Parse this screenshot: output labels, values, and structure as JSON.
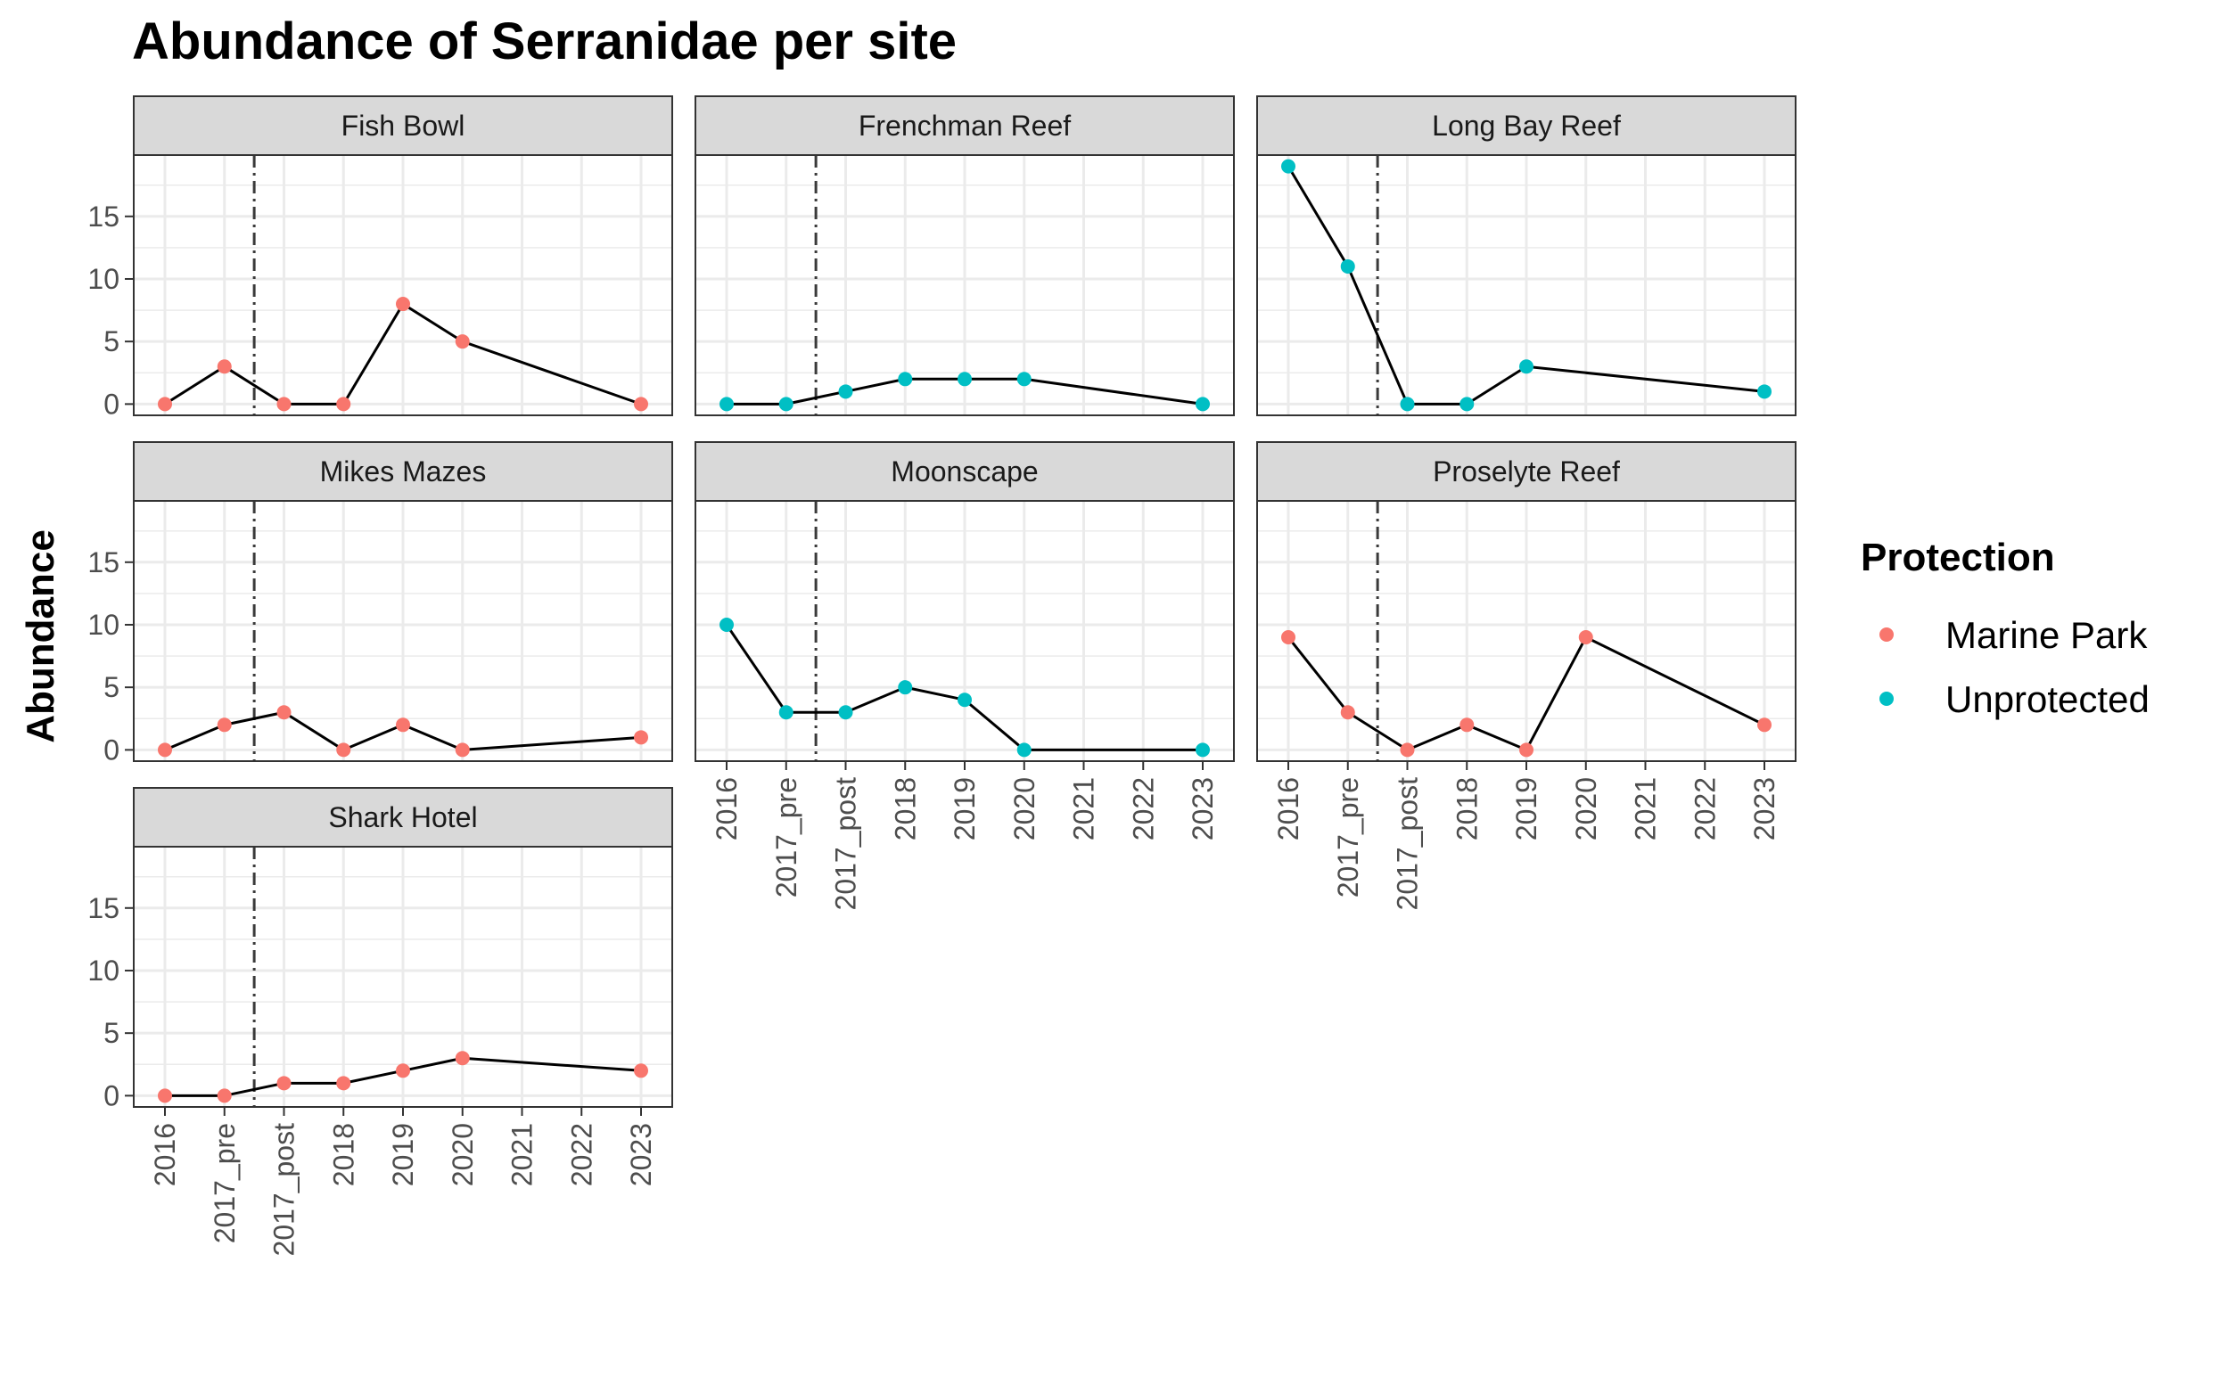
{
  "chart_data": {
    "type": "line",
    "title": "Abundance of Serranidae per site",
    "ylabel": "Abundance",
    "xlabel": "",
    "categories": [
      "2016",
      "2017_pre",
      "2017_post",
      "2018",
      "2019",
      "2020",
      "2021",
      "2022",
      "2023"
    ],
    "y_ticks": [
      "0",
      "5",
      "10",
      "15"
    ],
    "ylim": [
      -0.9,
      19.9
    ],
    "reference_line": {
      "between": [
        "2017_pre",
        "2017_post"
      ],
      "style": "dashdot"
    },
    "grid": true,
    "legend": {
      "title": "Protection",
      "placement": "right",
      "entries": [
        {
          "label": "Marine Park",
          "color": "#F8766D"
        },
        {
          "label": "Unprotected",
          "color": "#00BFC4"
        }
      ]
    },
    "panels": [
      {
        "site": "Fish Bowl",
        "protection": "Marine Park",
        "x": [
          "2016",
          "2017_pre",
          "2017_post",
          "2018",
          "2019",
          "2020",
          "2023"
        ],
        "y": [
          0,
          3,
          0,
          0,
          8,
          5,
          0
        ]
      },
      {
        "site": "Frenchman Reef",
        "protection": "Unprotected",
        "x": [
          "2016",
          "2017_pre",
          "2017_post",
          "2018",
          "2019",
          "2020",
          "2023"
        ],
        "y": [
          0,
          0,
          1,
          2,
          2,
          2,
          0
        ]
      },
      {
        "site": "Long Bay Reef",
        "protection": "Unprotected",
        "x": [
          "2016",
          "2017_pre",
          "2017_post",
          "2018",
          "2019",
          "2023"
        ],
        "y": [
          19,
          11,
          0,
          0,
          3,
          1
        ]
      },
      {
        "site": "Mikes Mazes",
        "protection": "Marine Park",
        "x": [
          "2016",
          "2017_pre",
          "2017_post",
          "2018",
          "2019",
          "2020",
          "2023"
        ],
        "y": [
          0,
          2,
          3,
          0,
          2,
          0,
          1
        ]
      },
      {
        "site": "Moonscape",
        "protection": "Unprotected",
        "x": [
          "2016",
          "2017_pre",
          "2017_post",
          "2018",
          "2019",
          "2020",
          "2023"
        ],
        "y": [
          10,
          3,
          3,
          5,
          4,
          0,
          0
        ]
      },
      {
        "site": "Proselyte Reef",
        "protection": "Marine Park",
        "x": [
          "2016",
          "2017_pre",
          "2017_post",
          "2018",
          "2019",
          "2020",
          "2023"
        ],
        "y": [
          9,
          3,
          0,
          2,
          0,
          9,
          2
        ]
      },
      {
        "site": "Shark Hotel",
        "protection": "Marine Park",
        "x": [
          "2016",
          "2017_pre",
          "2017_post",
          "2018",
          "2019",
          "2020",
          "2023"
        ],
        "y": [
          0,
          0,
          1,
          1,
          2,
          3,
          2
        ]
      }
    ]
  }
}
